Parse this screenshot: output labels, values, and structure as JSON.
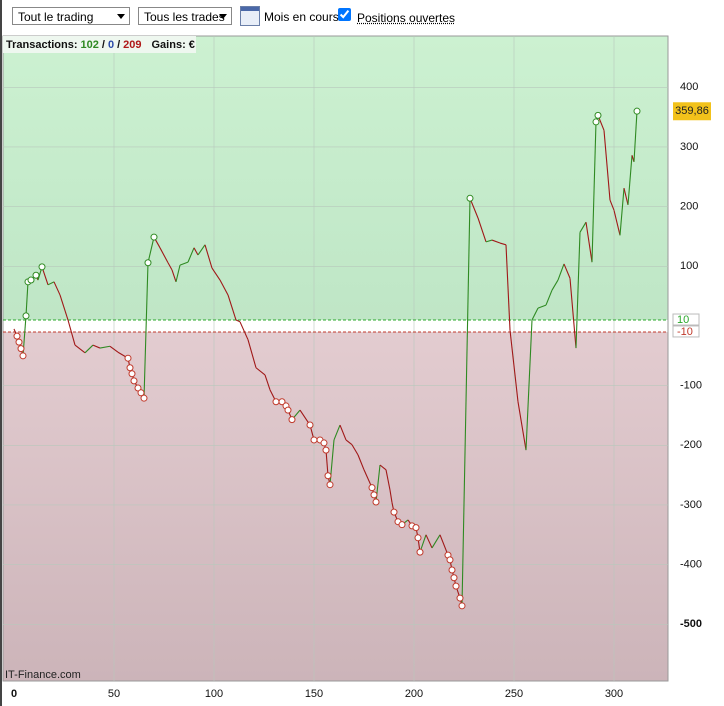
{
  "toolbar": {
    "period_select": "Tout le trading",
    "trade_select": "Tous les trades",
    "month_label": "Mois en cours",
    "open_positions": "Positions ouvertes",
    "open_positions_checked": true
  },
  "chart_data": {
    "type": "line",
    "summary": {
      "label": "Transactions:",
      "wins": 102,
      "neutral": 0,
      "losses": 209,
      "separator": "/",
      "gains_label": "Gains:",
      "currency": "€"
    },
    "watermark": "IT-Finance.com",
    "xlim": [
      -5.5,
      327
    ],
    "ylim": [
      -595,
      486
    ],
    "xticks": [
      0,
      50,
      100,
      150,
      200,
      250,
      300
    ],
    "yticks": [
      400,
      300,
      200,
      100,
      -100,
      -200,
      -300,
      -400,
      -500
    ],
    "grid": true,
    "thresholds": [
      {
        "value": 10,
        "color": "#2aa82a"
      },
      {
        "value": -10,
        "color": "#c0392b"
      }
    ],
    "last_value": {
      "value": 359.86,
      "label": "359,86"
    },
    "up_color": "#2f8a22",
    "down_color": "#a01818",
    "x": [
      0,
      1.5,
      2.5,
      3.5,
      4.5,
      6,
      7,
      8.5,
      11,
      12,
      14,
      17,
      20,
      23,
      27,
      30.5,
      35.5,
      39.5,
      43,
      48,
      52,
      57,
      58,
      59,
      60,
      62,
      63.5,
      65,
      67,
      70,
      73,
      77,
      79,
      81,
      83,
      87,
      90,
      92,
      95.5,
      99,
      103,
      107,
      111,
      113,
      117,
      121,
      125.5,
      128,
      131,
      134,
      136,
      137,
      139,
      143,
      148,
      150,
      153,
      155,
      156,
      157,
      158,
      160,
      163,
      166,
      169,
      172,
      175,
      179,
      180,
      181,
      183,
      186,
      188,
      189,
      190,
      192,
      194,
      197,
      199,
      201,
      202,
      203,
      206,
      209,
      213,
      217,
      218,
      219,
      220,
      221,
      223,
      224,
      228,
      232,
      236,
      239,
      243,
      246,
      248,
      252,
      256,
      259,
      262,
      266,
      269,
      272,
      275,
      278,
      281,
      283,
      286,
      289,
      291,
      292,
      295,
      298,
      300,
      303,
      305,
      307,
      309,
      310,
      311.5
    ],
    "values": [
      -5,
      -17,
      -27,
      -38,
      -50,
      17,
      74,
      77,
      85,
      77,
      99,
      69,
      74,
      52,
      10,
      -32,
      -45,
      -32,
      -37,
      -34,
      -44,
      -54,
      -70,
      -80,
      -92,
      -104,
      -112,
      -121,
      106,
      149,
      131,
      106,
      94,
      74,
      102,
      107,
      131,
      119,
      136,
      97,
      77,
      52,
      10,
      7,
      -23,
      -70,
      -82,
      -107,
      -127,
      -127,
      -134,
      -141,
      -157,
      -141,
      -166,
      -191,
      -191,
      -196,
      -208,
      -251,
      -266,
      -191,
      -166,
      -191,
      -199,
      -216,
      -241,
      -271,
      -283,
      -295,
      -233,
      -241,
      -275,
      -296,
      -312,
      -328,
      -333,
      -325,
      -335,
      -338,
      -355,
      -379,
      -350,
      -372,
      -350,
      -384,
      -392,
      -409,
      -422,
      -436,
      -456,
      -469,
      214,
      181,
      141,
      144,
      139,
      136,
      -7,
      -127,
      -208,
      10,
      30,
      35,
      60,
      77,
      104,
      80,
      -37,
      157,
      174,
      107,
      342,
      353,
      328,
      211,
      194,
      152,
      231,
      203,
      286,
      275,
      360
    ],
    "markers": [
      {
        "color": "#c0392b",
        "x": [
          1.5,
          2.5,
          3.5,
          4.5,
          57,
          58,
          59,
          60,
          62,
          63.5,
          65,
          131,
          134,
          136,
          137,
          139,
          148,
          150,
          153,
          155,
          156,
          157,
          158,
          179,
          180,
          181,
          190,
          192,
          194,
          199,
          201,
          202,
          203,
          217,
          218,
          219,
          220,
          221,
          223,
          224
        ],
        "values": [
          -17,
          -27,
          -38,
          -50,
          -54,
          -70,
          -80,
          -92,
          -104,
          -112,
          -121,
          -127,
          -127,
          -134,
          -141,
          -157,
          -166,
          -191,
          -191,
          -196,
          -208,
          -251,
          -266,
          -271,
          -283,
          -295,
          -312,
          -328,
          -333,
          -335,
          -338,
          -355,
          -379,
          -384,
          -392,
          -409,
          -422,
          -436,
          -456,
          -469
        ]
      },
      {
        "color": "#2f8a22",
        "x": [
          6,
          7,
          8.5,
          11,
          14,
          67,
          70,
          228,
          291,
          292,
          311.5
        ],
        "values": [
          17,
          74,
          77,
          85,
          99,
          106,
          149,
          214,
          342,
          353,
          360
        ]
      }
    ]
  }
}
